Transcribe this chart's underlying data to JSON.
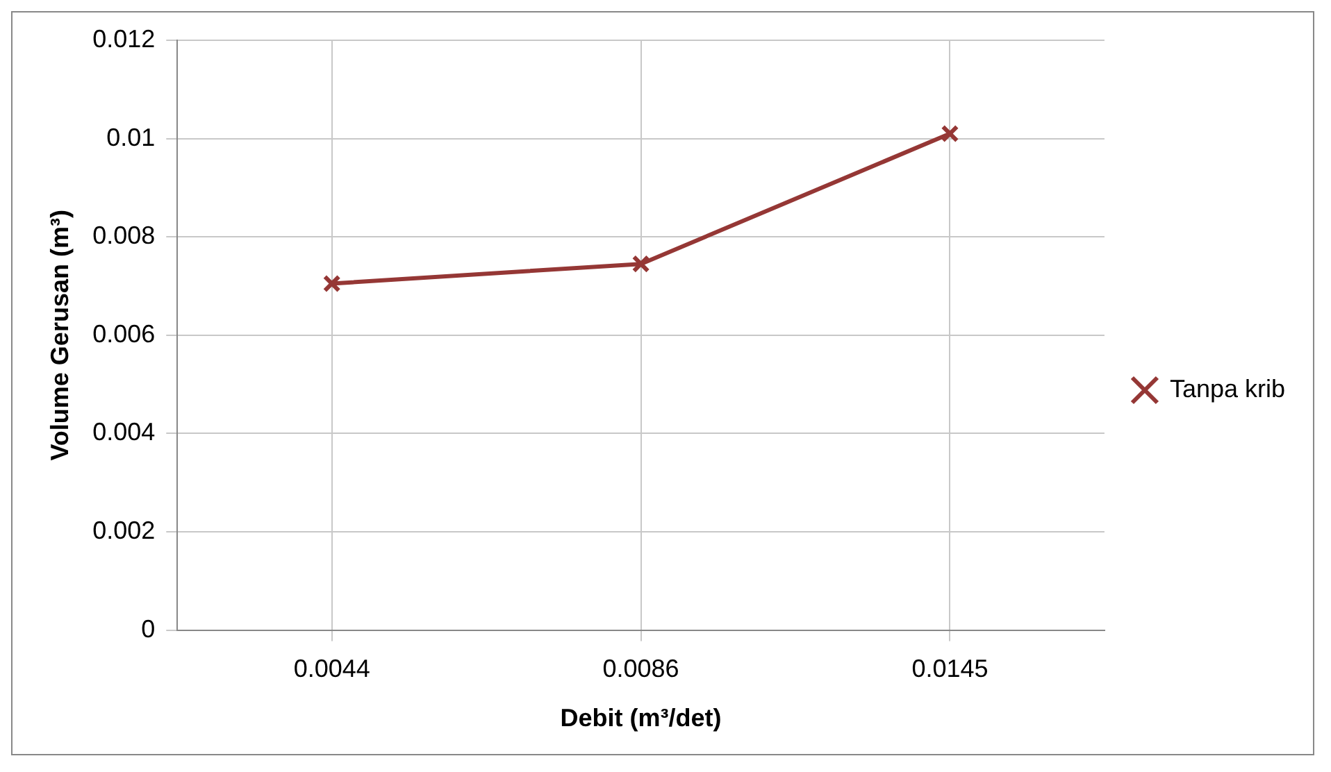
{
  "chart_data": {
    "type": "line",
    "xlabel": "Debit (m³/det)",
    "ylabel": "Volume Gerusan (m³)",
    "categories": [
      "0.0044",
      "0.0086",
      "0.0145"
    ],
    "series": [
      {
        "name": "Tanpa krib",
        "color": "#953735",
        "values": [
          0.00705,
          0.00745,
          0.0101
        ]
      }
    ],
    "ylim": [
      0,
      0.012
    ],
    "yticks": [
      0,
      0.002,
      0.004,
      0.006,
      0.008,
      0.01,
      0.012
    ],
    "grid": true,
    "legend": "right",
    "marker": "cross",
    "line_style": "solid"
  }
}
